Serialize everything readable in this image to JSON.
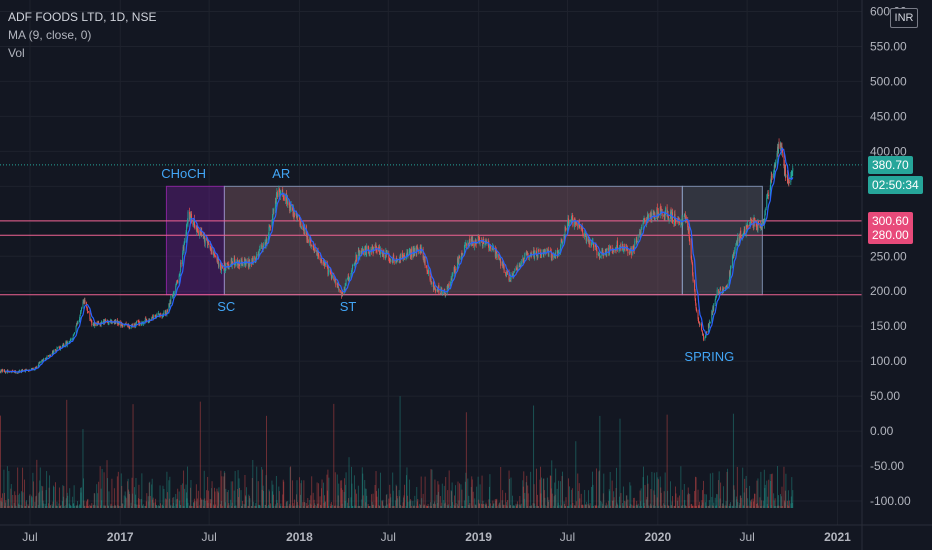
{
  "header": {
    "symbol": "ADF FOODS LTD, 1D, NSE",
    "ma": "MA (9, close, 0)",
    "vol": "Vol",
    "currency": "INR"
  },
  "price_tags": {
    "last": "380.70",
    "countdown": "02:50:34",
    "level_high": "300.60",
    "level_low": "280.00"
  },
  "colors": {
    "background": "#131722",
    "up": "#26a69a",
    "down": "#ef5350",
    "ma": "#2962ff",
    "level": "#f06292",
    "annotation": "#42a5f5"
  },
  "chart_data": {
    "type": "candlestick",
    "title": "ADF FOODS LTD, 1D, NSE",
    "price_axis_ticks": [
      "600.00",
      "550.00",
      "500.00",
      "450.00",
      "400.00",
      "350.00",
      "300.00",
      "250.00",
      "200.00",
      "150.00",
      "100.00",
      "50.00",
      "0.00",
      "-50.00",
      "-100.00"
    ],
    "price_range": [
      -110,
      605
    ],
    "time_axis_ticks": [
      "Jul",
      "2017",
      "Jul",
      "2018",
      "Jul",
      "2019",
      "Jul",
      "2020",
      "Jul",
      "2021"
    ],
    "time_ticks_dates": [
      "2016-07-01",
      "2017-01-01",
      "2017-07-01",
      "2018-01-01",
      "2018-07-01",
      "2019-01-01",
      "2019-07-01",
      "2020-01-01",
      "2020-07-01",
      "2021-01-01"
    ],
    "date_range": [
      "2016-05-01",
      "2021-02-20"
    ],
    "close_path": [
      {
        "date": "2016-05-01",
        "close": 86
      },
      {
        "date": "2016-06-05",
        "close": 84
      },
      {
        "date": "2016-07-10",
        "close": 90
      },
      {
        "date": "2016-08-15",
        "close": 112
      },
      {
        "date": "2016-09-25",
        "close": 130
      },
      {
        "date": "2016-10-20",
        "close": 187
      },
      {
        "date": "2016-11-05",
        "close": 150
      },
      {
        "date": "2016-12-10",
        "close": 158
      },
      {
        "date": "2017-01-20",
        "close": 150
      },
      {
        "date": "2017-03-01",
        "close": 160
      },
      {
        "date": "2017-04-05",
        "close": 170
      },
      {
        "date": "2017-05-01",
        "close": 222
      },
      {
        "date": "2017-05-20",
        "close": 312
      },
      {
        "date": "2017-06-10",
        "close": 286
      },
      {
        "date": "2017-07-01",
        "close": 265
      },
      {
        "date": "2017-07-25",
        "close": 232
      },
      {
        "date": "2017-08-20",
        "close": 243
      },
      {
        "date": "2017-09-25",
        "close": 240
      },
      {
        "date": "2017-10-25",
        "close": 270
      },
      {
        "date": "2017-11-20",
        "close": 345
      },
      {
        "date": "2017-12-10",
        "close": 325
      },
      {
        "date": "2018-01-05",
        "close": 295
      },
      {
        "date": "2018-02-05",
        "close": 255
      },
      {
        "date": "2018-03-05",
        "close": 225
      },
      {
        "date": "2018-03-28",
        "close": 195
      },
      {
        "date": "2018-05-01",
        "close": 255
      },
      {
        "date": "2018-06-05",
        "close": 262
      },
      {
        "date": "2018-07-10",
        "close": 245
      },
      {
        "date": "2018-08-10",
        "close": 252
      },
      {
        "date": "2018-09-05",
        "close": 262
      },
      {
        "date": "2018-10-01",
        "close": 205
      },
      {
        "date": "2018-10-25",
        "close": 198
      },
      {
        "date": "2018-12-01",
        "close": 262
      },
      {
        "date": "2019-01-01",
        "close": 275
      },
      {
        "date": "2019-02-05",
        "close": 255
      },
      {
        "date": "2019-03-05",
        "close": 217
      },
      {
        "date": "2019-04-05",
        "close": 250
      },
      {
        "date": "2019-05-10",
        "close": 255
      },
      {
        "date": "2019-06-10",
        "close": 252
      },
      {
        "date": "2019-07-05",
        "close": 305
      },
      {
        "date": "2019-08-01",
        "close": 285
      },
      {
        "date": "2019-09-05",
        "close": 252
      },
      {
        "date": "2019-10-10",
        "close": 265
      },
      {
        "date": "2019-11-10",
        "close": 257
      },
      {
        "date": "2019-12-05",
        "close": 300
      },
      {
        "date": "2020-01-10",
        "close": 315
      },
      {
        "date": "2020-02-10",
        "close": 300
      },
      {
        "date": "2020-03-01",
        "close": 305
      },
      {
        "date": "2020-03-20",
        "close": 170
      },
      {
        "date": "2020-04-05",
        "close": 128
      },
      {
        "date": "2020-05-01",
        "close": 198
      },
      {
        "date": "2020-05-20",
        "close": 205
      },
      {
        "date": "2020-06-10",
        "close": 272
      },
      {
        "date": "2020-07-10",
        "close": 300
      },
      {
        "date": "2020-08-01",
        "close": 292
      },
      {
        "date": "2020-08-20",
        "close": 365
      },
      {
        "date": "2020-09-05",
        "close": 412
      },
      {
        "date": "2020-09-20",
        "close": 355
      },
      {
        "date": "2020-10-05",
        "close": 380.7
      }
    ],
    "moving_average": {
      "label": "MA (9, close, 0)",
      "period": 9
    },
    "levels": [
      300.6,
      280.0,
      195
    ],
    "last_price": 380.7,
    "rectangles": [
      {
        "from": "2017-04-05",
        "to": "2017-08-01",
        "top": 350,
        "bottom": 195,
        "fill": "#7b1fa2"
      },
      {
        "from": "2017-08-01",
        "to": "2020-02-20",
        "top": 350,
        "bottom": 195,
        "fill": "#9e6a78"
      },
      {
        "from": "2020-02-20",
        "to": "2020-08-01",
        "top": 350,
        "bottom": 195,
        "fill": "#6d6d78"
      }
    ],
    "annotations": [
      {
        "text": "CHoCH",
        "date": "2017-05-10",
        "price": 362
      },
      {
        "text": "AR",
        "date": "2017-11-25",
        "price": 362
      },
      {
        "text": "SC",
        "date": "2017-08-05",
        "price": 172
      },
      {
        "text": "ST",
        "date": "2018-04-10",
        "price": 172
      },
      {
        "text": "SPRING",
        "date": "2020-04-15",
        "price": 100
      }
    ],
    "volume_label": "Vol"
  }
}
